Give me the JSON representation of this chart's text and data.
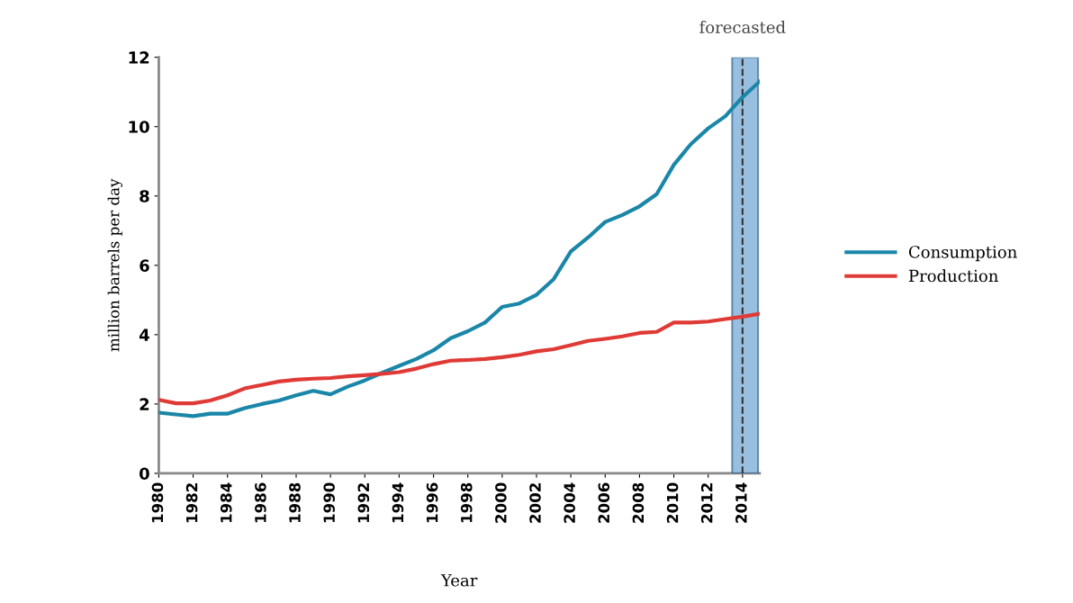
{
  "chart_data": {
    "type": "line",
    "xlabel": "Year",
    "ylabel": "million barrels per day",
    "x": [
      1980,
      1981,
      1982,
      1983,
      1984,
      1985,
      1986,
      1987,
      1988,
      1989,
      1990,
      1991,
      1992,
      1993,
      1994,
      1995,
      1996,
      1997,
      1998,
      1999,
      2000,
      2001,
      2002,
      2003,
      2004,
      2005,
      2006,
      2007,
      2008,
      2009,
      2010,
      2011,
      2012,
      2013,
      2014,
      2015
    ],
    "series": [
      {
        "name": "Consumption",
        "color": "#1a87a8",
        "values": [
          1.75,
          1.7,
          1.65,
          1.72,
          1.72,
          1.88,
          2.0,
          2.1,
          2.25,
          2.38,
          2.28,
          2.5,
          2.68,
          2.9,
          3.1,
          3.3,
          3.55,
          3.9,
          4.1,
          4.35,
          4.8,
          4.9,
          5.15,
          5.6,
          6.4,
          6.8,
          7.25,
          7.45,
          7.7,
          8.05,
          8.9,
          9.5,
          9.95,
          10.3,
          10.85,
          11.3
        ]
      },
      {
        "name": "Production",
        "color": "#e03a36",
        "values": [
          2.12,
          2.02,
          2.02,
          2.1,
          2.25,
          2.45,
          2.55,
          2.65,
          2.7,
          2.73,
          2.75,
          2.8,
          2.83,
          2.87,
          2.92,
          3.02,
          3.15,
          3.25,
          3.27,
          3.3,
          3.35,
          3.42,
          3.52,
          3.58,
          3.7,
          3.82,
          3.88,
          3.95,
          4.05,
          4.08,
          4.35,
          4.35,
          4.38,
          4.45,
          4.52,
          4.6
        ]
      }
    ],
    "xlim": [
      1980,
      2015
    ],
    "xticks": [
      1980,
      1982,
      1984,
      1986,
      1988,
      1990,
      1992,
      1994,
      1996,
      1998,
      2000,
      2002,
      2004,
      2006,
      2008,
      2010,
      2012,
      2014
    ],
    "ylim": [
      0,
      12
    ],
    "yticks": [
      0,
      2,
      4,
      6,
      8,
      10,
      12
    ],
    "bands": [
      {
        "axis": "x",
        "from": 2013.4,
        "to": 2014.9,
        "color": "#7fb0d8"
      }
    ],
    "ref_lines": [
      {
        "axis": "x",
        "value": 2014,
        "label": "forecasted",
        "color": "#333333",
        "line_style": "dashed"
      }
    ],
    "grid": false,
    "legend": "right",
    "marker": "none",
    "line_style": "solid"
  }
}
